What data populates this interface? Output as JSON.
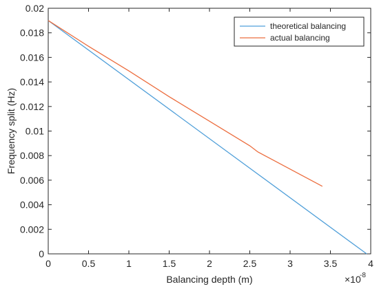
{
  "chart_data": {
    "type": "line",
    "xlabel": "Balancing depth (m)",
    "ylabel": "Frequency split (Hz)",
    "x_exponent_label": "×10",
    "x_exponent_power": "-8",
    "xlim": [
      0,
      4
    ],
    "ylim": [
      0,
      0.02
    ],
    "x_ticks": [
      "0",
      "0.5",
      "1",
      "1.5",
      "2",
      "2.5",
      "3",
      "3.5",
      "4"
    ],
    "y_ticks": [
      "0",
      "0.002",
      "0.004",
      "0.006",
      "0.008",
      "0.01",
      "0.012",
      "0.014",
      "0.016",
      "0.018",
      "0.02"
    ],
    "grid": false,
    "legend_position": "top-right",
    "series": [
      {
        "name": "theoretical balancing",
        "color": "#4f9fd9",
        "x": [
          0,
          3.95
        ],
        "y": [
          0.019,
          0.0
        ]
      },
      {
        "name": "actual balancing",
        "color": "#ec6d3e",
        "x": [
          0,
          0.5,
          1.0,
          1.5,
          2.0,
          2.5,
          2.6,
          2.8,
          3.0,
          3.2,
          3.4
        ],
        "y": [
          0.019,
          0.0169,
          0.0149,
          0.0128,
          0.0108,
          0.0088,
          0.0083,
          0.0076,
          0.0069,
          0.0062,
          0.0055
        ]
      }
    ]
  }
}
